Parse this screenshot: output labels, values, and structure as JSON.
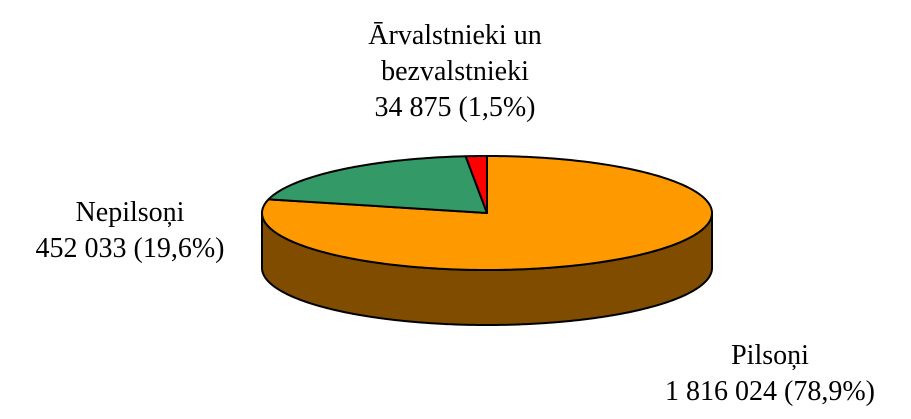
{
  "chart_data": {
    "type": "pie",
    "categories": [
      "Pilsoņi",
      "Nepilsoņi",
      "Ārvalstnieki un bezvalstnieki"
    ],
    "values": [
      1816024,
      452033,
      34875
    ],
    "value_labels": [
      "1 816 024 (78,9%)",
      "452 033 (19,6%)",
      "34 875 (1,5%)"
    ],
    "colors": [
      "#ff9900",
      "#339966",
      "#ff0000"
    ]
  }
}
